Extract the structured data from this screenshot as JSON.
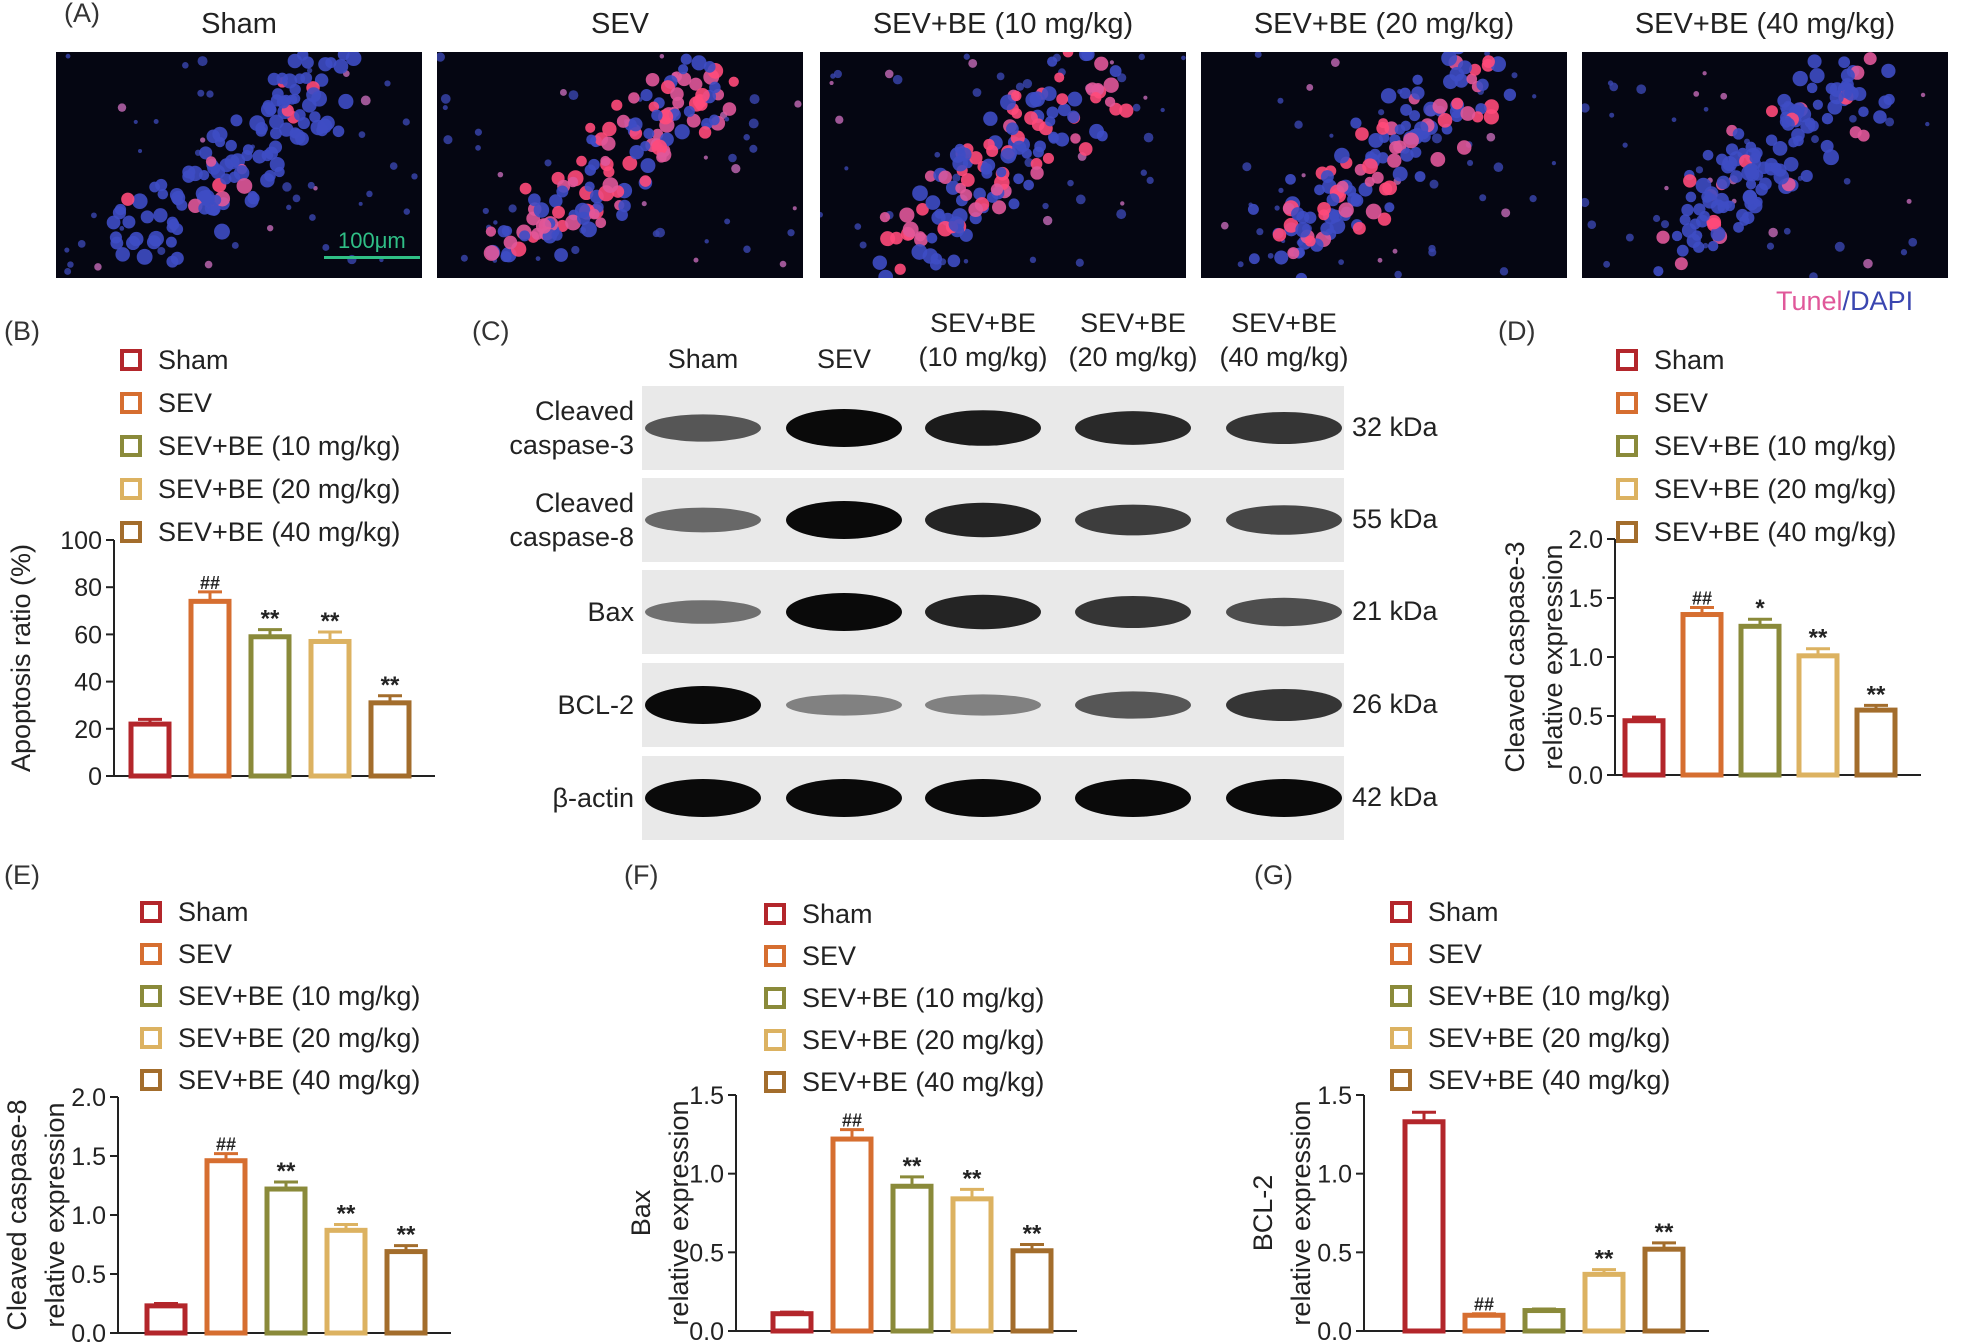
{
  "figure": {
    "panel_labels": [
      "(A)",
      "(B)",
      "(C)",
      "(D)",
      "(E)",
      "(F)",
      "(G)"
    ]
  },
  "panel_a": {
    "groups": [
      "Sham",
      "SEV",
      "SEV+BE (10 mg/kg)",
      "SEV+BE (20 mg/kg)",
      "SEV+BE (40 mg/kg)"
    ],
    "scale_bar": "100μm",
    "stain_legend": {
      "tunel": "Tunel",
      "sep": "/",
      "dapi": "DAPI"
    },
    "tunel_fraction": [
      0.05,
      0.55,
      0.45,
      0.35,
      0.12
    ]
  },
  "panel_c": {
    "lanes": [
      [
        "Sham"
      ],
      [
        "SEV"
      ],
      [
        "SEV+BE",
        "(10 mg/kg)"
      ],
      [
        "SEV+BE",
        "(20 mg/kg)"
      ],
      [
        "SEV+BE",
        "(40 mg/kg)"
      ]
    ],
    "rows": [
      {
        "name": [
          "Cleaved",
          "caspase-3"
        ],
        "kda": "32 kDa",
        "intensity": [
          0.55,
          1.0,
          0.9,
          0.82,
          0.75
        ]
      },
      {
        "name": [
          "Cleaved",
          "caspase-8"
        ],
        "kda": "55 kDa",
        "intensity": [
          0.45,
          1.0,
          0.85,
          0.7,
          0.65
        ]
      },
      {
        "name": [
          "Bax"
        ],
        "kda": "21 kDa",
        "intensity": [
          0.4,
          1.0,
          0.85,
          0.75,
          0.6
        ]
      },
      {
        "name": [
          "BCL-2"
        ],
        "kda": "26 kDa",
        "intensity": [
          1.0,
          0.3,
          0.3,
          0.55,
          0.75
        ]
      },
      {
        "name": [
          "β-actin"
        ],
        "kda": "42 kDa",
        "intensity": [
          1.0,
          1.0,
          1.0,
          1.0,
          1.0
        ]
      }
    ]
  },
  "colors": {
    "series": [
      "#b3262b",
      "#d66e30",
      "#8a8a3a",
      "#dcb261",
      "#a36d2c"
    ],
    "tunel": "#e0589a",
    "dapi": "#3a46b0"
  },
  "chart_data": [
    {
      "id": "B",
      "type": "bar",
      "categories": [
        "Sham",
        "SEV",
        "SEV+BE (10 mg/kg)",
        "SEV+BE (20 mg/kg)",
        "SEV+BE (40 mg/kg)"
      ],
      "values": [
        22,
        74,
        59,
        57,
        31
      ],
      "errors": [
        2,
        4,
        3,
        4,
        3
      ],
      "significance": [
        "",
        "##",
        "**",
        "**",
        "**"
      ],
      "ylabel": [
        "Apoptosis ratio (%)"
      ],
      "ylim": [
        0,
        100
      ],
      "yticks": [
        "0",
        "20",
        "40",
        "60",
        "80",
        "100"
      ],
      "legend": [
        "Sham",
        "SEV",
        "SEV+BE (10 mg/kg)",
        "SEV+BE (20 mg/kg)",
        "SEV+BE (40 mg/kg)"
      ],
      "legend_position": "top"
    },
    {
      "id": "D",
      "type": "bar",
      "categories": [
        "Sham",
        "SEV",
        "SEV+BE (10 mg/kg)",
        "SEV+BE (20 mg/kg)",
        "SEV+BE (40 mg/kg)"
      ],
      "values": [
        0.46,
        1.36,
        1.26,
        1.01,
        0.55
      ],
      "errors": [
        0.03,
        0.06,
        0.06,
        0.06,
        0.04
      ],
      "significance": [
        "",
        "##",
        "*",
        "**",
        "**"
      ],
      "ylabel": [
        "Cleaved caspase-3",
        "relative expression"
      ],
      "ylim": [
        0,
        2.0
      ],
      "yticks": [
        "0.0",
        "0.5",
        "1.0",
        "1.5",
        "2.0"
      ],
      "legend": [
        "Sham",
        "SEV",
        "SEV+BE (10 mg/kg)",
        "SEV+BE (20 mg/kg)",
        "SEV+BE (40 mg/kg)"
      ],
      "legend_position": "top"
    },
    {
      "id": "E",
      "type": "bar",
      "categories": [
        "Sham",
        "SEV",
        "SEV+BE (10 mg/kg)",
        "SEV+BE (20 mg/kg)",
        "SEV+BE (40 mg/kg)"
      ],
      "values": [
        0.23,
        1.46,
        1.22,
        0.87,
        0.69
      ],
      "errors": [
        0.02,
        0.06,
        0.06,
        0.05,
        0.05
      ],
      "significance": [
        "",
        "##",
        "**",
        "**",
        "**"
      ],
      "ylabel": [
        "Cleaved caspase-8",
        "relative expression"
      ],
      "ylim": [
        0,
        2.0
      ],
      "yticks": [
        "0.0",
        "0.5",
        "1.0",
        "1.5",
        "2.0"
      ],
      "legend": [
        "Sham",
        "SEV",
        "SEV+BE (10 mg/kg)",
        "SEV+BE (20 mg/kg)",
        "SEV+BE (40 mg/kg)"
      ],
      "legend_position": "top"
    },
    {
      "id": "F",
      "type": "bar",
      "categories": [
        "Sham",
        "SEV",
        "SEV+BE (10 mg/kg)",
        "SEV+BE (20 mg/kg)",
        "SEV+BE (40 mg/kg)"
      ],
      "values": [
        0.11,
        1.22,
        0.92,
        0.84,
        0.51
      ],
      "errors": [
        0.01,
        0.06,
        0.06,
        0.06,
        0.04
      ],
      "significance": [
        "",
        "##",
        "**",
        "**",
        "**"
      ],
      "ylabel": [
        "Bax",
        "relative expression"
      ],
      "ylim": [
        0,
        1.5
      ],
      "yticks": [
        "0.0",
        "0.5",
        "1.0",
        "1.5"
      ],
      "legend": [
        "Sham",
        "SEV",
        "SEV+BE (10 mg/kg)",
        "SEV+BE (20 mg/kg)",
        "SEV+BE (40 mg/kg)"
      ],
      "legend_position": "top"
    },
    {
      "id": "G",
      "type": "bar",
      "categories": [
        "Sham",
        "SEV",
        "SEV+BE (10 mg/kg)",
        "SEV+BE (20 mg/kg)",
        "SEV+BE (40 mg/kg)"
      ],
      "values": [
        1.33,
        0.1,
        0.13,
        0.36,
        0.52
      ],
      "errors": [
        0.06,
        0.01,
        0.01,
        0.03,
        0.04
      ],
      "significance": [
        "",
        "##",
        "",
        "**",
        "**"
      ],
      "ylabel": [
        "BCL-2",
        "relative expression"
      ],
      "ylim": [
        0,
        1.5
      ],
      "yticks": [
        "0.0",
        "0.5",
        "1.0",
        "1.5"
      ],
      "legend": [
        "Sham",
        "SEV",
        "SEV+BE (10 mg/kg)",
        "SEV+BE (20 mg/kg)",
        "SEV+BE (40 mg/kg)"
      ],
      "legend_position": "top"
    }
  ]
}
